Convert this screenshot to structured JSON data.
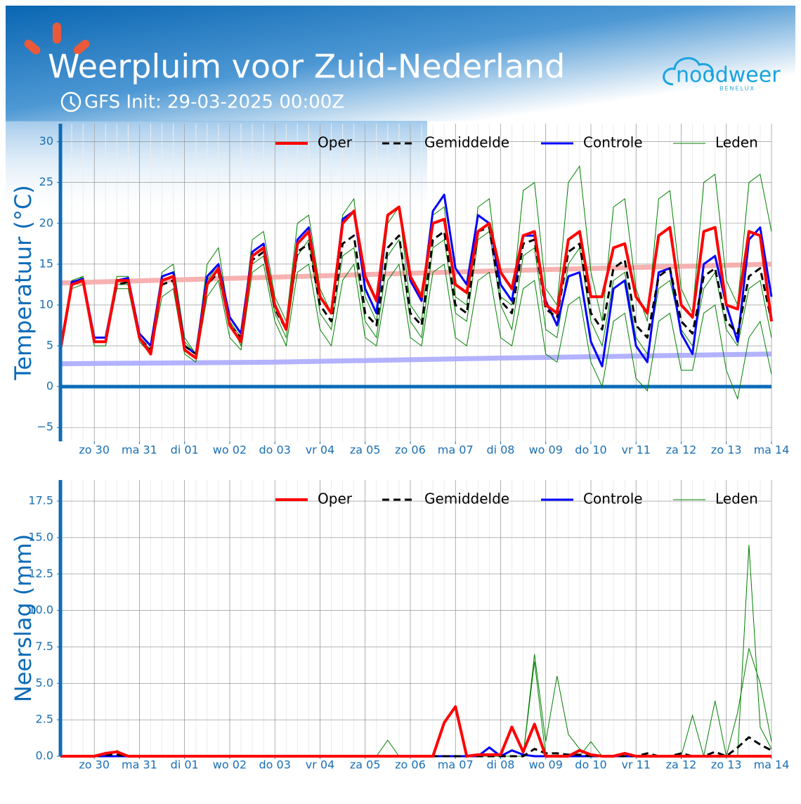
{
  "header": {
    "title": "Weerpluim voor Zuid-Nederland",
    "subtitle": "GFS Init: 29-03-2025 00:00Z",
    "logo": "noodweer",
    "logo_sub": "BENELUX"
  },
  "chart_data": [
    {
      "type": "line",
      "ylabel": "Temperatuur (°C)",
      "x": [
        6,
        12,
        18,
        24,
        30,
        36,
        42,
        48,
        54,
        60,
        66,
        72,
        78,
        84,
        90,
        96,
        102,
        108,
        114,
        120,
        126,
        132,
        138,
        144,
        150,
        156,
        162,
        168,
        174,
        180,
        186,
        192,
        198,
        204,
        210,
        216,
        222,
        228,
        234,
        240,
        246,
        252,
        258,
        264,
        270,
        276,
        282,
        288,
        294,
        300,
        306,
        312,
        318,
        324,
        330,
        336,
        342,
        348,
        354,
        360,
        366,
        372,
        378,
        384
      ],
      "xlim": [
        6,
        384
      ],
      "xticks": [
        {
          "value": 24,
          "label": "zo 30"
        },
        {
          "value": 48,
          "label": "ma 31"
        },
        {
          "value": 72,
          "label": "di 01"
        },
        {
          "value": 96,
          "label": "wo 02"
        },
        {
          "value": 120,
          "label": "do 03"
        },
        {
          "value": 144,
          "label": "vr 04"
        },
        {
          "value": 168,
          "label": "za 05"
        },
        {
          "value": 192,
          "label": "zo 06"
        },
        {
          "value": 216,
          "label": "ma 07"
        },
        {
          "value": 240,
          "label": "di 08"
        },
        {
          "value": 264,
          "label": "wo 09"
        },
        {
          "value": 288,
          "label": "do 10"
        },
        {
          "value": 312,
          "label": "vr 11"
        },
        {
          "value": 336,
          "label": "za 12"
        },
        {
          "value": 360,
          "label": "zo 13"
        },
        {
          "value": 384,
          "label": "ma 14"
        }
      ],
      "ylim": [
        -6.7,
        32.2
      ],
      "yticks": [
        {
          "value": -5,
          "label": "−5"
        },
        0,
        5,
        10,
        15,
        20,
        25,
        30
      ],
      "grid": true,
      "hline": 0,
      "legend": "upper right",
      "bands": [
        {
          "color": "#f6a8a8",
          "x": [
            6,
            120,
            240,
            384
          ],
          "values": [
            12.7,
            13.4,
            14.2,
            15
          ]
        },
        {
          "color": "#aaaaff",
          "x": [
            6,
            120,
            240,
            384
          ],
          "values": [
            2.8,
            3,
            3.5,
            4
          ]
        }
      ],
      "series": [
        {
          "name": "Oper",
          "color": "#ff0000",
          "linewidth": 4,
          "values": [
            4.5,
            12.5,
            13,
            5.5,
            5.5,
            13,
            13,
            6,
            4,
            13,
            13.5,
            4.5,
            3.5,
            12.5,
            14.5,
            7.5,
            5.5,
            16,
            17,
            10,
            7,
            17.5,
            19,
            11,
            9,
            20,
            21.5,
            13.5,
            10.5,
            21,
            22,
            13.5,
            11,
            20,
            20.5,
            12.5,
            11.5,
            19,
            20,
            14,
            12,
            18.5,
            19,
            10,
            9,
            18,
            19,
            11,
            11,
            17,
            17.5,
            11,
            9,
            18.5,
            19.5,
            10,
            8.5,
            19,
            19.5,
            10,
            9.5,
            19,
            18.5,
            8
          ]
        },
        {
          "name": "Gemiddelde",
          "color": "#000000",
          "linewidth": 3,
          "linestyle": "dashed",
          "values": [
            4.5,
            12.5,
            13,
            5.5,
            5.5,
            12.5,
            12.8,
            6,
            4.5,
            12.5,
            13,
            5,
            4,
            12.5,
            14,
            7.5,
            6,
            15.5,
            16.5,
            9.5,
            7,
            16.5,
            17.5,
            10,
            8,
            17.5,
            18.5,
            9,
            7.5,
            17,
            18.5,
            9,
            7.5,
            18,
            19,
            10,
            9,
            19,
            19.5,
            10.5,
            9,
            17.5,
            18,
            9.5,
            8.5,
            16.5,
            17.5,
            9,
            7,
            14.5,
            15.5,
            7.5,
            6,
            13.5,
            14.5,
            8,
            6.5,
            13.5,
            14.5,
            8,
            6.5,
            13.5,
            14.5,
            8
          ]
        },
        {
          "name": "Controle",
          "color": "#0000ff",
          "linewidth": 3,
          "values": [
            4.5,
            12.8,
            13.2,
            6,
            6,
            13,
            13.3,
            6.5,
            5,
            13.5,
            14,
            5,
            4,
            13.5,
            15,
            8.5,
            6.5,
            16.5,
            17.5,
            10,
            7,
            18,
            19.5,
            11,
            9,
            20.5,
            21.5,
            12,
            9,
            21,
            22,
            13,
            10.5,
            21.5,
            23.5,
            14.5,
            12.5,
            21,
            20,
            12.5,
            10.5,
            18.5,
            18.5,
            10.5,
            7.5,
            13.5,
            14,
            5.5,
            2.5,
            12,
            13,
            5,
            3,
            14,
            14.5,
            6.5,
            4,
            15,
            16,
            10,
            5.5,
            18,
            19.5,
            11
          ]
        },
        {
          "name": "Leden",
          "color": "#008000",
          "linewidth": 1,
          "members": [
            [
              4.5,
              13,
              13.5,
              6,
              6,
              13.5,
              13.5,
              6.5,
              5,
              14,
              15,
              6,
              4,
              15,
              17,
              8,
              6,
              18,
              19,
              11,
              8,
              20,
              21,
              12,
              9,
              21,
              23,
              11,
              8,
              20,
              22,
              10,
              8,
              21,
              22,
              11,
              10,
              22,
              23,
              11,
              10,
              24,
              25,
              12,
              10,
              25,
              27,
              14,
              8,
              22,
              23,
              12,
              8,
              23,
              24,
              12,
              9,
              25,
              26,
              13,
              10,
              25,
              26,
              19
            ],
            [
              4.5,
              12,
              12.5,
              5,
              5,
              12,
              12,
              5.5,
              4,
              11,
              12,
              4,
              3,
              11,
              13,
              6,
              4.5,
              14,
              15,
              8,
              5,
              14,
              15,
              7,
              5,
              13,
              15,
              6,
              5,
              13,
              15,
              6,
              5,
              14,
              15,
              6,
              5,
              13,
              14,
              6,
              5,
              12,
              13,
              4,
              3,
              10,
              11,
              3,
              0,
              8,
              9,
              1,
              -0.5,
              8,
              9,
              2,
              2,
              9,
              10,
              2,
              -1.5,
              6,
              8,
              1.5
            ],
            [
              4.5,
              12.5,
              13.5,
              5,
              5,
              12.5,
              12.5,
              6,
              4.5,
              13,
              13.5,
              5.5,
              4,
              13,
              15,
              8,
              5,
              15,
              16,
              9,
              6,
              16,
              18,
              9,
              7,
              16,
              17,
              8,
              6,
              16,
              18,
              8,
              6,
              17,
              18,
              9,
              8,
              18,
              19,
              10,
              7,
              16,
              17,
              7,
              6,
              15,
              17,
              8,
              5,
              13,
              14,
              6,
              4,
              12,
              13,
              7,
              5,
              12,
              14,
              7,
              5,
              12,
              13,
              6
            ]
          ]
        }
      ]
    },
    {
      "type": "line",
      "ylabel": "Neerslag (mm)",
      "x": [
        6,
        12,
        18,
        24,
        30,
        36,
        42,
        48,
        54,
        60,
        66,
        72,
        78,
        84,
        90,
        96,
        102,
        108,
        114,
        120,
        126,
        132,
        138,
        144,
        150,
        156,
        162,
        168,
        174,
        180,
        186,
        192,
        198,
        204,
        210,
        216,
        222,
        228,
        234,
        240,
        246,
        252,
        258,
        264,
        270,
        276,
        282,
        288,
        294,
        300,
        306,
        312,
        318,
        324,
        330,
        336,
        342,
        348,
        354,
        360,
        366,
        372,
        378,
        384
      ],
      "xlim": [
        6,
        384
      ],
      "xticks": [
        {
          "value": 24,
          "label": "zo 30"
        },
        {
          "value": 48,
          "label": "ma 31"
        },
        {
          "value": 72,
          "label": "di 01"
        },
        {
          "value": 96,
          "label": "wo 02"
        },
        {
          "value": 120,
          "label": "do 03"
        },
        {
          "value": 144,
          "label": "vr 04"
        },
        {
          "value": 168,
          "label": "za 05"
        },
        {
          "value": 192,
          "label": "zo 06"
        },
        {
          "value": 216,
          "label": "ma 07"
        },
        {
          "value": 240,
          "label": "di 08"
        },
        {
          "value": 264,
          "label": "wo 09"
        },
        {
          "value": 288,
          "label": "do 10"
        },
        {
          "value": 312,
          "label": "vr 11"
        },
        {
          "value": 336,
          "label": "za 12"
        },
        {
          "value": 360,
          "label": "zo 13"
        },
        {
          "value": 384,
          "label": "ma 14"
        }
      ],
      "ylim": [
        0,
        18.95
      ],
      "yticks": [
        {
          "value": 0,
          "label": "0.0"
        },
        2.5,
        {
          "value": 5,
          "label": "5.0"
        },
        7.5,
        {
          "value": 10,
          "label": "10.0"
        },
        12.5,
        {
          "value": 15,
          "label": "15.0"
        },
        17.5
      ],
      "grid": true,
      "legend": "upper right",
      "series": [
        {
          "name": "Oper",
          "color": "#ff0000",
          "linewidth": 4,
          "values": [
            0,
            0,
            0,
            0,
            0.2,
            0.3,
            0,
            0,
            0,
            0,
            0,
            0,
            0,
            0,
            0,
            0,
            0,
            0,
            0,
            0,
            0,
            0,
            0,
            0,
            0,
            0,
            0,
            0,
            0,
            0,
            0,
            0,
            0,
            0,
            2.3,
            3.4,
            0,
            0.1,
            0.1,
            0.1,
            2.0,
            0.3,
            2.2,
            0,
            0,
            0,
            0.4,
            0.1,
            0,
            0,
            0.2,
            0,
            0,
            0,
            0,
            0,
            0,
            0,
            0,
            0,
            0,
            0,
            0,
            0
          ]
        },
        {
          "name": "Gemiddelde",
          "color": "#000000",
          "linewidth": 3,
          "linestyle": "dashed",
          "values": [
            0,
            0,
            0,
            0,
            0.1,
            0.1,
            0,
            0,
            0,
            0,
            0,
            0,
            0,
            0,
            0,
            0,
            0,
            0,
            0,
            0,
            0,
            0,
            0,
            0,
            0,
            0,
            0,
            0,
            0,
            0,
            0,
            0,
            0,
            0,
            0,
            0,
            0,
            0,
            0,
            0,
            0,
            0,
            0.5,
            0.2,
            0.2,
            0.1,
            0.1,
            0,
            0,
            0,
            0,
            0,
            0.2,
            0,
            0,
            0.2,
            0,
            0,
            0.3,
            0,
            0.6,
            1.3,
            0.8,
            0.4
          ]
        },
        {
          "name": "Controle",
          "color": "#0000ff",
          "linewidth": 3,
          "values": [
            0,
            0,
            0,
            0,
            0,
            0,
            0,
            0,
            0,
            0,
            0,
            0,
            0,
            0,
            0,
            0,
            0,
            0,
            0,
            0,
            0,
            0,
            0,
            0,
            0,
            0,
            0,
            0,
            0,
            0,
            0,
            0,
            0,
            0,
            0,
            0,
            0,
            0,
            0.6,
            0,
            0.4,
            0.1,
            0,
            0,
            0,
            0,
            0,
            0,
            0,
            0,
            0,
            0,
            0,
            0,
            0,
            0,
            0,
            0,
            0,
            0,
            0,
            0,
            0,
            0
          ]
        },
        {
          "name": "Leden",
          "color": "#008000",
          "linewidth": 1,
          "members": [
            [
              0,
              0,
              0,
              0,
              0,
              0,
              0,
              0,
              0,
              0,
              0,
              0,
              0,
              0,
              0,
              0,
              0,
              0,
              0,
              0,
              0,
              0,
              0,
              0,
              0,
              0,
              0,
              0,
              0,
              0,
              0,
              0,
              0,
              0,
              0,
              0,
              0,
              0,
              0,
              0,
              0,
              0,
              7.0,
              1.0,
              5.5,
              1.5,
              0.5,
              0,
              0,
              0,
              0,
              0,
              0,
              0,
              0,
              0,
              0,
              0,
              3.8,
              0,
              0,
              14.5,
              2,
              0.5
            ],
            [
              0,
              0,
              0,
              0,
              0,
              0.4,
              0,
              0,
              0,
              0,
              0,
              0,
              0,
              0,
              0,
              0,
              0,
              0,
              0,
              0,
              0,
              0,
              0,
              0,
              0,
              0,
              0,
              0,
              0,
              1.1,
              0,
              0,
              0,
              0,
              0,
              0,
              0,
              0,
              0,
              0,
              0,
              0,
              6.5,
              0,
              0,
              0,
              0,
              1.0,
              0,
              0,
              0,
              0,
              0,
              0,
              0,
              0,
              2.8,
              0,
              0,
              0,
              3.0,
              7.4,
              5.0,
              1.0
            ]
          ]
        }
      ]
    }
  ]
}
